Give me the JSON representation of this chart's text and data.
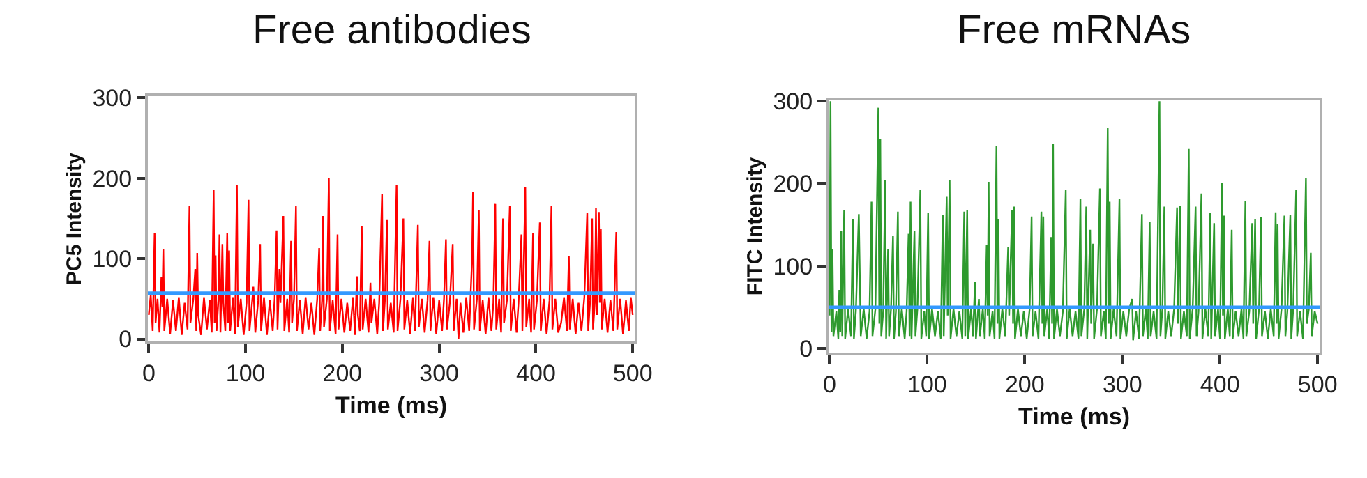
{
  "chart_data": [
    {
      "type": "line",
      "title": "Free antibodies",
      "xlabel": "Time (ms)",
      "ylabel": "PC5 Intensity",
      "xlim": [
        -1,
        502
      ],
      "ylim": [
        -3,
        302
      ],
      "xticks": [
        0,
        100,
        200,
        300,
        400,
        {
          "value": 500,
          "label": "500"
        }
      ],
      "yticks": [
        0,
        100,
        200,
        300
      ],
      "marker": "none",
      "ref_lines": [
        {
          "axis": "y",
          "value": 57,
          "color": "#3399ff"
        }
      ],
      "series": [
        {
          "color": "#ff0000",
          "x": [
            0,
            2,
            4,
            5,
            6,
            7,
            9,
            11,
            13,
            14,
            15,
            16,
            19,
            22,
            25,
            28,
            31,
            34,
            37,
            40,
            42,
            43,
            46,
            48,
            49,
            50,
            51,
            54,
            57,
            60,
            63,
            65,
            67,
            68,
            69,
            70,
            72,
            73,
            74,
            76,
            77,
            79,
            81,
            82,
            83,
            84,
            87,
            89,
            91,
            92,
            95,
            98,
            101,
            103,
            104,
            107,
            108,
            110,
            113,
            115,
            116,
            119,
            122,
            125,
            128,
            130,
            132,
            133,
            135,
            136,
            139,
            140,
            143,
            145,
            147,
            148,
            150,
            152,
            153,
            156,
            159,
            162,
            165,
            168,
            171,
            174,
            176,
            177,
            179,
            180,
            181,
            184,
            186,
            187,
            190,
            193,
            195,
            196,
            199,
            202,
            205,
            208,
            211,
            213,
            215,
            216,
            218,
            220,
            221,
            224,
            227,
            229,
            230,
            233,
            236,
            238,
            241,
            242,
            244,
            246,
            247,
            250,
            253,
            256,
            257,
            260,
            263,
            264,
            267,
            270,
            273,
            275,
            278,
            279,
            282,
            285,
            288,
            290,
            291,
            294,
            297,
            300,
            303,
            305,
            307,
            308,
            311,
            314,
            315,
            318,
            320,
            322,
            325,
            328,
            331,
            334,
            335,
            336,
            339,
            341,
            342,
            345,
            348,
            351,
            354,
            356,
            358,
            359,
            362,
            364,
            366,
            367,
            370,
            373,
            374,
            377,
            380,
            382,
            385,
            386,
            389,
            390,
            393,
            395,
            397,
            398,
            401,
            404,
            405,
            408,
            411,
            414,
            416,
            417,
            420,
            423,
            426,
            429,
            432,
            434,
            435,
            438,
            441,
            444,
            447,
            450,
            453,
            454,
            456,
            458,
            459,
            461,
            462,
            463,
            465,
            466,
            467,
            468,
            471,
            474,
            477,
            480,
            483,
            484,
            487,
            490,
            493,
            496,
            498,
            500
          ],
          "values": [
            30,
            55,
            10,
            70,
            132,
            20,
            50,
            8,
            77,
            40,
            112,
            10,
            50,
            6,
            48,
            10,
            52,
            5,
            45,
            12,
            165,
            20,
            50,
            87,
            10,
            107,
            30,
            5,
            52,
            12,
            48,
            8,
            185,
            20,
            104,
            10,
            50,
            130,
            8,
            118,
            45,
            10,
            132,
            20,
            110,
            10,
            52,
            6,
            192,
            15,
            50,
            5,
            45,
            173,
            10,
            50,
            65,
            8,
            48,
            118,
            10,
            52,
            5,
            48,
            10,
            50,
            135,
            12,
            87,
            45,
            153,
            10,
            50,
            8,
            122,
            20,
            50,
            165,
            10,
            48,
            6,
            52,
            12,
            45,
            5,
            50,
            113,
            10,
            48,
            153,
            15,
            50,
            200,
            10,
            48,
            6,
            130,
            12,
            50,
            8,
            45,
            10,
            52,
            5,
            78,
            30,
            10,
            140,
            12,
            50,
            8,
            70,
            20,
            50,
            6,
            45,
            180,
            10,
            50,
            148,
            12,
            45,
            8,
            191,
            10,
            50,
            150,
            12,
            48,
            6,
            52,
            10,
            142,
            15,
            50,
            8,
            48,
            122,
            10,
            52,
            6,
            48,
            10,
            50,
            124,
            12,
            45,
            118,
            10,
            50,
            0,
            45,
            8,
            52,
            10,
            100,
            183,
            12,
            50,
            160,
            10,
            48,
            6,
            52,
            10,
            45,
            168,
            12,
            50,
            8,
            150,
            20,
            48,
            165,
            10,
            50,
            8,
            45,
            130,
            10,
            189,
            15,
            50,
            8,
            132,
            12,
            48,
            145,
            10,
            50,
            6,
            48,
            165,
            12,
            50,
            8,
            20,
            52,
            10,
            103,
            12,
            50,
            6,
            45,
            10,
            52,
            157,
            10,
            48,
            150,
            12,
            50,
            163,
            30,
            158,
            45,
            137,
            12,
            50,
            8,
            48,
            10,
            133,
            12,
            50,
            6,
            48,
            10,
            52,
            30
          ]
        }
      ]
    },
    {
      "type": "line",
      "title": "Free mRNAs",
      "xlabel": "Time (ms)",
      "ylabel": "FITC Intensity",
      "xlim": [
        -1,
        502
      ],
      "ylim": [
        -5,
        301
      ],
      "xticks": [
        0,
        100,
        200,
        300,
        400,
        500
      ],
      "yticks": [
        0,
        100,
        200,
        300
      ],
      "marker": "none",
      "ref_lines": [
        {
          "axis": "y",
          "value": 50,
          "color": "#3399ff"
        }
      ],
      "series": [
        {
          "color": "#2e9a2e",
          "x": [
            0,
            1,
            2,
            3,
            4,
            7,
            9,
            10,
            11,
            12,
            13,
            15,
            16,
            19,
            22,
            24,
            25,
            27,
            30,
            31,
            32,
            35,
            38,
            41,
            43,
            44,
            47,
            50,
            51,
            52,
            53,
            55,
            57,
            58,
            60,
            61,
            63,
            65,
            66,
            68,
            70,
            71,
            74,
            77,
            79,
            81,
            82,
            83,
            84,
            87,
            88,
            90,
            93,
            94,
            97,
            99,
            101,
            102,
            105,
            108,
            111,
            114,
            116,
            117,
            120,
            121,
            123,
            124,
            127,
            130,
            133,
            136,
            138,
            139,
            141,
            142,
            145,
            147,
            149,
            150,
            153,
            154,
            157,
            159,
            161,
            162,
            163,
            164,
            167,
            169,
            171,
            172,
            173,
            174,
            177,
            180,
            183,
            184,
            187,
            188,
            189,
            190,
            193,
            196,
            199,
            202,
            205,
            207,
            208,
            211,
            214,
            217,
            218,
            219,
            220,
            223,
            225,
            227,
            228,
            229,
            230,
            233,
            236,
            239,
            242,
            243,
            246,
            249,
            252,
            255,
            257,
            258,
            261,
            263,
            264,
            267,
            268,
            270,
            271,
            274,
            277,
            278,
            281,
            283,
            285,
            286,
            287,
            288,
            291,
            294,
            297,
            298,
            301,
            304,
            307,
            310,
            311,
            314,
            317,
            320,
            321,
            324,
            326,
            328,
            329,
            332,
            335,
            338,
            339,
            341,
            343,
            344,
            347,
            350,
            353,
            356,
            357,
            359,
            360,
            363,
            366,
            368,
            369,
            372,
            375,
            376,
            378,
            381,
            382,
            385,
            388,
            390,
            391,
            394,
            395,
            398,
            400,
            402,
            403,
            404,
            405,
            408,
            410,
            412,
            413,
            416,
            419,
            422,
            424,
            426,
            427,
            430,
            433,
            434,
            436,
            437,
            440,
            442,
            443,
            446,
            449,
            452,
            455,
            457,
            458,
            459,
            460,
            463,
            466,
            467,
            469,
            472,
            473,
            475,
            478,
            479,
            482,
            485,
            488,
            489,
            491,
            493,
            494,
            497,
            500
          ],
          "values": [
            40,
            300,
            20,
            121,
            15,
            45,
            12,
            71,
            20,
            143,
            15,
            168,
            12,
            48,
            15,
            157,
            12,
            45,
            163,
            90,
            15,
            48,
            12,
            45,
            178,
            15,
            48,
            292,
            30,
            254,
            15,
            45,
            204,
            12,
            121,
            15,
            48,
            137,
            12,
            45,
            166,
            15,
            48,
            12,
            45,
            139,
            15,
            178,
            12,
            142,
            15,
            48,
            192,
            12,
            45,
            15,
            164,
            12,
            48,
            15,
            45,
            12,
            162,
            15,
            184,
            40,
            204,
            12,
            48,
            15,
            45,
            12,
            166,
            15,
            168,
            12,
            48,
            15,
            81,
            12,
            60,
            15,
            48,
            12,
            126,
            40,
            202,
            15,
            45,
            12,
            246,
            30,
            157,
            12,
            48,
            15,
            123,
            40,
            168,
            30,
            172,
            12,
            48,
            15,
            45,
            12,
            48,
            160,
            15,
            45,
            12,
            166,
            30,
            160,
            15,
            48,
            12,
            135,
            30,
            248,
            12,
            48,
            15,
            45,
            192,
            12,
            48,
            15,
            45,
            12,
            181,
            15,
            48,
            172,
            12,
            144,
            30,
            127,
            12,
            48,
            194,
            15,
            45,
            12,
            268,
            30,
            178,
            12,
            48,
            15,
            181,
            12,
            45,
            15,
            48,
            60,
            10,
            45,
            12,
            163,
            15,
            48,
            12,
            154,
            15,
            45,
            12,
            300,
            15,
            48,
            172,
            12,
            45,
            15,
            48,
            171,
            30,
            173,
            12,
            45,
            15,
            242,
            12,
            48,
            172,
            15,
            45,
            188,
            12,
            48,
            15,
            164,
            12,
            152,
            15,
            48,
            12,
            201,
            40,
            161,
            12,
            48,
            15,
            144,
            12,
            45,
            15,
            48,
            12,
            179,
            15,
            45,
            152,
            30,
            157,
            12,
            48,
            159,
            15,
            45,
            12,
            48,
            15,
            165,
            30,
            151,
            12,
            48,
            161,
            15,
            45,
            162,
            12,
            48,
            192,
            15,
            45,
            12,
            207,
            30,
            48,
            116,
            15,
            45,
            30
          ]
        }
      ]
    }
  ]
}
